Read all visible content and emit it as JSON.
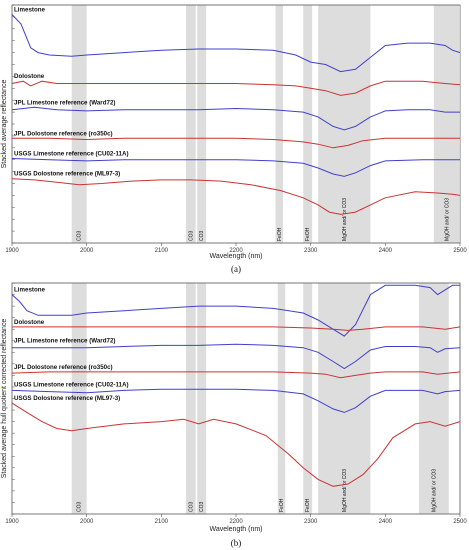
{
  "chart_data": [
    {
      "type": "line",
      "panel_caption": "(a)",
      "xlabel": "Wavelength (nm)",
      "ylabel": "Stacked average reflectance",
      "xlim": [
        1900,
        2500
      ],
      "xticks": [
        "1900",
        "2000",
        "2100",
        "2200",
        "2300",
        "2400",
        "2500"
      ],
      "absorption_bands": [
        {
          "label": "CO3",
          "x": [
            1980,
            2000
          ]
        },
        {
          "label": "CO3",
          "x": [
            2133,
            2146
          ]
        },
        {
          "label": "CO3",
          "x": [
            2148,
            2160
          ]
        },
        {
          "label": "FeOH",
          "x": [
            2253,
            2263
          ]
        },
        {
          "label": "FeOH",
          "x": [
            2290,
            2302
          ]
        },
        {
          "label": "MgOH and/ or CO3",
          "x": [
            2310,
            2380
          ]
        },
        {
          "label": "MgOH and/ or CO3",
          "x": [
            2465,
            2500
          ]
        }
      ],
      "series": [
        {
          "name": "Limestone",
          "color": "#4040cc",
          "x": [
            1900,
            1912,
            1925,
            1935,
            1950,
            1980,
            2000,
            2050,
            2100,
            2150,
            2200,
            2250,
            2280,
            2300,
            2320,
            2340,
            2360,
            2380,
            2400,
            2430,
            2460,
            2480,
            2490,
            2500
          ],
          "y": [
            0.96,
            0.92,
            0.82,
            0.8,
            0.79,
            0.785,
            0.79,
            0.8,
            0.81,
            0.815,
            0.815,
            0.81,
            0.79,
            0.76,
            0.75,
            0.72,
            0.73,
            0.78,
            0.83,
            0.84,
            0.84,
            0.83,
            0.81,
            0.8
          ]
        },
        {
          "name": "Dolostone",
          "color": "#cc3333",
          "x": [
            1900,
            1915,
            1925,
            1940,
            1960,
            2000,
            2100,
            2200,
            2250,
            2280,
            2300,
            2320,
            2340,
            2360,
            2380,
            2400,
            2450,
            2480,
            2500
          ],
          "y": [
            0.67,
            0.68,
            0.66,
            0.68,
            0.67,
            0.67,
            0.67,
            0.67,
            0.665,
            0.66,
            0.65,
            0.64,
            0.62,
            0.63,
            0.66,
            0.68,
            0.68,
            0.67,
            0.665
          ]
        },
        {
          "name": "JPL Limestone reference (Ward72)",
          "color": "#4040cc",
          "x": [
            1900,
            1930,
            1960,
            2000,
            2050,
            2100,
            2150,
            2200,
            2250,
            2290,
            2310,
            2330,
            2345,
            2360,
            2380,
            2400,
            2430,
            2460,
            2480,
            2500
          ],
          "y": [
            0.56,
            0.57,
            0.56,
            0.555,
            0.56,
            0.56,
            0.56,
            0.565,
            0.56,
            0.55,
            0.53,
            0.49,
            0.475,
            0.49,
            0.53,
            0.555,
            0.56,
            0.56,
            0.55,
            0.55
          ]
        },
        {
          "name": "JPL Dolostone reference (ro350c)",
          "color": "#cc3333",
          "x": [
            1900,
            1950,
            2000,
            2050,
            2100,
            2150,
            2200,
            2250,
            2290,
            2310,
            2330,
            2350,
            2370,
            2400,
            2450,
            2500
          ],
          "y": [
            0.44,
            0.44,
            0.435,
            0.44,
            0.44,
            0.44,
            0.44,
            0.435,
            0.425,
            0.415,
            0.4,
            0.41,
            0.43,
            0.44,
            0.44,
            0.44
          ]
        },
        {
          "name": "USGS Limestone reference (CU02-11A)",
          "color": "#4040cc",
          "x": [
            1900,
            1950,
            2000,
            2050,
            2100,
            2150,
            2200,
            2250,
            2290,
            2310,
            2330,
            2345,
            2360,
            2380,
            2400,
            2450,
            2500
          ],
          "y": [
            0.355,
            0.35,
            0.345,
            0.35,
            0.35,
            0.35,
            0.35,
            0.345,
            0.335,
            0.315,
            0.29,
            0.28,
            0.295,
            0.325,
            0.345,
            0.35,
            0.35
          ]
        },
        {
          "name": "USGS Dolostone reference (ML97-3)",
          "color": "#cc3333",
          "x": [
            1900,
            1930,
            1960,
            1990,
            2020,
            2060,
            2100,
            2140,
            2180,
            2220,
            2260,
            2290,
            2310,
            2325,
            2340,
            2360,
            2380,
            2400,
            2440,
            2470,
            2490,
            2500
          ],
          "y": [
            0.27,
            0.265,
            0.255,
            0.245,
            0.25,
            0.26,
            0.265,
            0.265,
            0.26,
            0.245,
            0.22,
            0.19,
            0.16,
            0.13,
            0.12,
            0.13,
            0.16,
            0.19,
            0.215,
            0.21,
            0.205,
            0.2
          ]
        }
      ]
    },
    {
      "type": "line",
      "panel_caption": "(b)",
      "xlabel": "Wavelength (nm)",
      "ylabel": "Stacked average hull quotient corrected reflectance",
      "xlim": [
        1900,
        2500
      ],
      "xticks": [
        "1900",
        "2000",
        "2100",
        "2200",
        "2300",
        "2400",
        "2500"
      ],
      "absorption_bands": [
        {
          "label": "CO3",
          "x": [
            1980,
            2000
          ]
        },
        {
          "label": "CO3",
          "x": [
            2133,
            2146
          ]
        },
        {
          "label": "CO3",
          "x": [
            2148,
            2160
          ]
        },
        {
          "label": "FeOH",
          "x": [
            2256,
            2266
          ]
        },
        {
          "label": "FeOH",
          "x": [
            2290,
            2302
          ]
        },
        {
          "label": "MgOH and/ or CO3",
          "x": [
            2310,
            2380
          ]
        },
        {
          "label": "MgOH and/ or CO3",
          "x": [
            2445,
            2485
          ]
        }
      ],
      "series": [
        {
          "name": "Limestone",
          "color": "#4040cc",
          "x": [
            1900,
            1910,
            1920,
            1935,
            1950,
            1980,
            2000,
            2050,
            2100,
            2150,
            2200,
            2250,
            2290,
            2310,
            2330,
            2345,
            2360,
            2380,
            2400,
            2440,
            2460,
            2470,
            2480,
            2490,
            2500
          ],
          "y": [
            0.95,
            0.92,
            0.88,
            0.86,
            0.86,
            0.86,
            0.87,
            0.88,
            0.89,
            0.9,
            0.9,
            0.89,
            0.87,
            0.84,
            0.8,
            0.77,
            0.82,
            0.95,
            0.99,
            0.99,
            0.98,
            0.95,
            0.97,
            0.99,
            0.99
          ]
        },
        {
          "name": "Dolostone",
          "color": "#cc3333",
          "x": [
            1900,
            2000,
            2100,
            2200,
            2250,
            2300,
            2330,
            2350,
            2370,
            2400,
            2450,
            2480,
            2500
          ],
          "y": [
            0.81,
            0.81,
            0.81,
            0.81,
            0.81,
            0.805,
            0.8,
            0.795,
            0.8,
            0.81,
            0.81,
            0.8,
            0.81
          ]
        },
        {
          "name": "JPL Limestone reference (Ward72)",
          "color": "#4040cc",
          "x": [
            1900,
            1950,
            2000,
            2050,
            2100,
            2150,
            2200,
            2250,
            2290,
            2310,
            2330,
            2345,
            2360,
            2380,
            2400,
            2440,
            2460,
            2470,
            2480,
            2500
          ],
          "y": [
            0.72,
            0.72,
            0.72,
            0.725,
            0.73,
            0.73,
            0.735,
            0.73,
            0.72,
            0.7,
            0.66,
            0.63,
            0.66,
            0.71,
            0.725,
            0.725,
            0.72,
            0.7,
            0.715,
            0.72
          ]
        },
        {
          "name": "JPL Dolostone reference (ro350c)",
          "color": "#cc3333",
          "x": [
            1900,
            1950,
            2000,
            2050,
            2100,
            2150,
            2200,
            2250,
            2300,
            2320,
            2340,
            2360,
            2380,
            2400,
            2450,
            2470,
            2500
          ],
          "y": [
            0.61,
            0.615,
            0.615,
            0.615,
            0.615,
            0.615,
            0.615,
            0.615,
            0.61,
            0.605,
            0.59,
            0.6,
            0.61,
            0.615,
            0.615,
            0.605,
            0.615
          ]
        },
        {
          "name": "USGS Limestone reference (CU02-11A)",
          "color": "#4040cc",
          "x": [
            1900,
            1950,
            2000,
            2050,
            2100,
            2150,
            2200,
            2250,
            2290,
            2310,
            2330,
            2345,
            2360,
            2380,
            2400,
            2450,
            2470,
            2480,
            2500
          ],
          "y": [
            0.535,
            0.53,
            0.525,
            0.535,
            0.54,
            0.54,
            0.54,
            0.535,
            0.52,
            0.49,
            0.455,
            0.44,
            0.46,
            0.51,
            0.535,
            0.535,
            0.52,
            0.53,
            0.535
          ]
        },
        {
          "name": "USGS Dolostone reference (ML97-3)",
          "color": "#cc3333",
          "x": [
            1900,
            1920,
            1940,
            1960,
            1980,
            2000,
            2050,
            2100,
            2130,
            2150,
            2170,
            2200,
            2240,
            2270,
            2290,
            2310,
            2330,
            2350,
            2370,
            2390,
            2410,
            2440,
            2460,
            2480,
            2500
          ],
          "y": [
            0.48,
            0.44,
            0.4,
            0.37,
            0.36,
            0.37,
            0.39,
            0.4,
            0.41,
            0.39,
            0.41,
            0.39,
            0.34,
            0.26,
            0.2,
            0.15,
            0.12,
            0.13,
            0.17,
            0.24,
            0.33,
            0.39,
            0.4,
            0.38,
            0.4
          ]
        }
      ]
    }
  ]
}
